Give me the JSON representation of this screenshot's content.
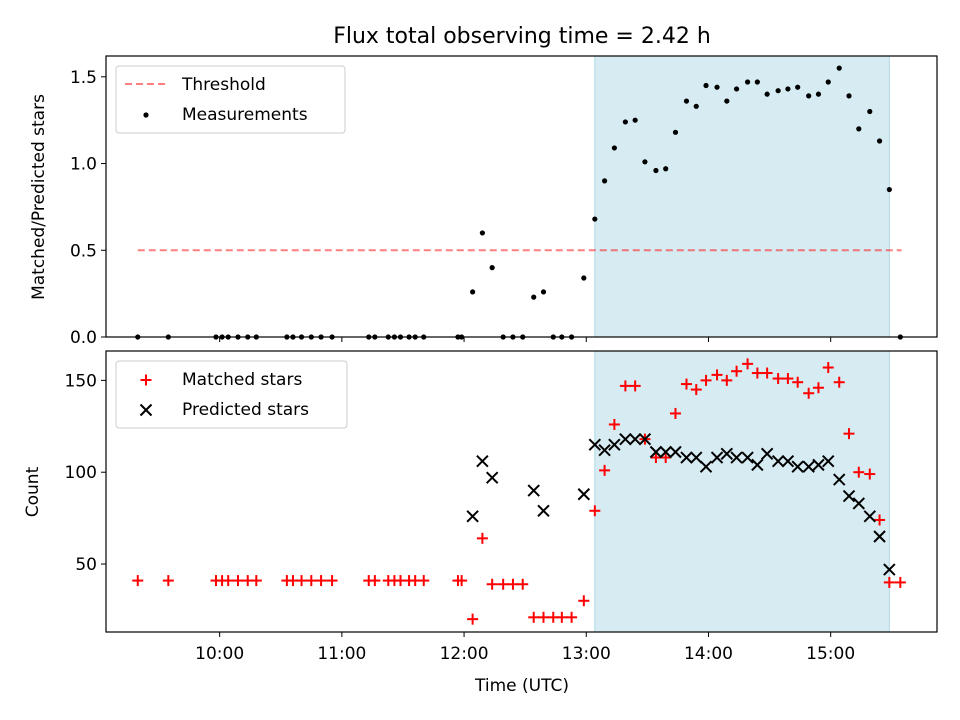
{
  "chart_data": [
    {
      "type": "scatter",
      "title": "Flux total observing time = 2.42 h",
      "xlabel": "",
      "ylabel": "Matched/Predicted stars",
      "ylim": [
        0,
        1.62
      ],
      "yticks": [
        0.0,
        0.5,
        1.0,
        1.5
      ],
      "ytick_labels": [
        "0.0",
        "0.5",
        "1.0",
        "1.5"
      ],
      "legend_position": "top-left",
      "shaded_interval": {
        "start": 13.07,
        "end": 15.48,
        "color": "#add8e6"
      },
      "threshold": {
        "name": "Threshold",
        "value": 0.5,
        "x_start": 9.33,
        "x_end": 15.58,
        "color": "#ff0000"
      },
      "series": [
        {
          "name": "Measurements",
          "marker": "dot",
          "color": "#000000",
          "x": [
            9.33,
            9.58,
            9.97,
            10.02,
            10.07,
            10.15,
            10.23,
            10.3,
            10.55,
            10.6,
            10.67,
            10.75,
            10.83,
            10.92,
            11.22,
            11.27,
            11.38,
            11.43,
            11.48,
            11.55,
            11.6,
            11.67,
            11.95,
            11.98,
            12.07,
            12.15,
            12.23,
            12.32,
            12.4,
            12.48,
            12.57,
            12.65,
            12.73,
            12.8,
            12.88,
            12.98,
            13.07,
            13.15,
            13.23,
            13.32,
            13.4,
            13.48,
            13.57,
            13.65,
            13.73,
            13.82,
            13.9,
            13.98,
            14.07,
            14.15,
            14.23,
            14.32,
            14.4,
            14.48,
            14.57,
            14.65,
            14.73,
            14.82,
            14.9,
            14.98,
            15.07,
            15.15,
            15.23,
            15.32,
            15.4,
            15.48,
            15.57
          ],
          "values": [
            0,
            0,
            0,
            0,
            0,
            0,
            0,
            0,
            0,
            0,
            0,
            0,
            0,
            0,
            0,
            0,
            0,
            0,
            0,
            0,
            0,
            0,
            0,
            0,
            0.26,
            0.6,
            0.4,
            0,
            0,
            0,
            0.23,
            0.26,
            0,
            0,
            0,
            0.34,
            0.68,
            0.9,
            1.09,
            1.24,
            1.25,
            1.01,
            0.96,
            0.97,
            1.18,
            1.36,
            1.33,
            1.45,
            1.44,
            1.36,
            1.43,
            1.47,
            1.47,
            1.4,
            1.42,
            1.43,
            1.44,
            1.39,
            1.4,
            1.47,
            1.55,
            1.39,
            1.2,
            1.3,
            1.13,
            0.85,
            0
          ]
        }
      ]
    },
    {
      "type": "scatter",
      "title": "",
      "xlabel": "Time (UTC)",
      "ylabel": "Count",
      "xlim": [
        9.07,
        15.87
      ],
      "ylim": [
        13,
        166
      ],
      "xticks": [
        10,
        11,
        12,
        13,
        14,
        15
      ],
      "xtick_labels": [
        "10:00",
        "11:00",
        "12:00",
        "13:00",
        "14:00",
        "15:00"
      ],
      "yticks": [
        50,
        100,
        150
      ],
      "ytick_labels": [
        "50",
        "100",
        "150"
      ],
      "legend_position": "top-left",
      "shaded_interval": {
        "start": 13.07,
        "end": 15.48,
        "color": "#add8e6"
      },
      "series": [
        {
          "name": "Matched stars",
          "marker": "plus",
          "color": "#ff0000",
          "x": [
            9.33,
            9.58,
            9.97,
            10.02,
            10.07,
            10.15,
            10.23,
            10.3,
            10.55,
            10.6,
            10.67,
            10.75,
            10.83,
            10.92,
            11.22,
            11.27,
            11.38,
            11.43,
            11.48,
            11.55,
            11.6,
            11.67,
            11.95,
            11.98,
            12.07,
            12.15,
            12.23,
            12.32,
            12.4,
            12.48,
            12.57,
            12.65,
            12.73,
            12.8,
            12.88,
            12.98,
            13.07,
            13.15,
            13.23,
            13.32,
            13.4,
            13.48,
            13.57,
            13.65,
            13.73,
            13.82,
            13.9,
            13.98,
            14.07,
            14.15,
            14.23,
            14.32,
            14.4,
            14.48,
            14.57,
            14.65,
            14.73,
            14.82,
            14.9,
            14.98,
            15.07,
            15.15,
            15.23,
            15.32,
            15.4,
            15.48,
            15.57
          ],
          "values": [
            41,
            41,
            41,
            41,
            41,
            41,
            41,
            41,
            41,
            41,
            41,
            41,
            41,
            41,
            41,
            41,
            41,
            41,
            41,
            41,
            41,
            41,
            41,
            41,
            20,
            64,
            39,
            39,
            39,
            39,
            21,
            21,
            21,
            21,
            21,
            30,
            79,
            101,
            126,
            147,
            147,
            118,
            108,
            108,
            132,
            148,
            145,
            150,
            153,
            150,
            155,
            159,
            154,
            154,
            151,
            151,
            149,
            143,
            146,
            157,
            149,
            121,
            100,
            99,
            74,
            40,
            40
          ]
        },
        {
          "name": "Predicted stars",
          "marker": "x",
          "color": "#000000",
          "x": [
            12.07,
            12.15,
            12.23,
            12.57,
            12.65,
            12.98,
            13.07,
            13.15,
            13.23,
            13.32,
            13.4,
            13.48,
            13.57,
            13.65,
            13.73,
            13.82,
            13.9,
            13.98,
            14.07,
            14.15,
            14.23,
            14.32,
            14.4,
            14.48,
            14.57,
            14.65,
            14.73,
            14.82,
            14.9,
            14.98,
            15.07,
            15.15,
            15.23,
            15.32,
            15.4,
            15.48
          ],
          "values": [
            76,
            106,
            97,
            90,
            79,
            88,
            115,
            112,
            115,
            118,
            118,
            118,
            111,
            111,
            111,
            108,
            108,
            103,
            108,
            110,
            108,
            108,
            104,
            110,
            106,
            106,
            103,
            103,
            104,
            106,
            96,
            87,
            83,
            76,
            65,
            47
          ]
        }
      ]
    }
  ]
}
